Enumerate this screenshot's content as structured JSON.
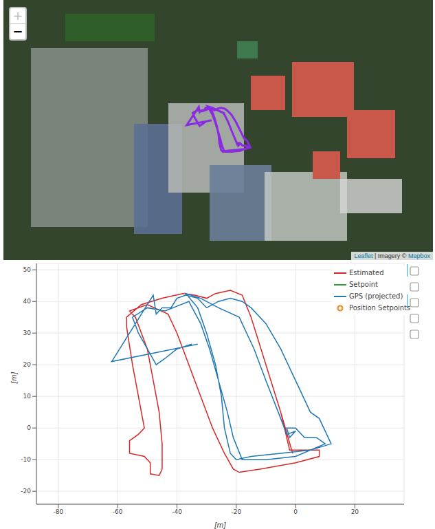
{
  "map": {
    "zoom_in": "+",
    "zoom_out": "−",
    "attribution": [
      "Leaflet",
      "|",
      "Imagery ©",
      "Mapbox"
    ],
    "track_color": "#8a2be2"
  },
  "chart_data": {
    "type": "line",
    "x_label": "[m]",
    "y_label": "[m]",
    "xlim": [
      -87.4,
      36.6
    ],
    "ylim": [
      -24.1,
      52
    ],
    "xticks": [
      -80,
      -60,
      -40,
      -20,
      0,
      20
    ],
    "yticks": [
      -20,
      -10,
      0,
      10,
      20,
      30,
      40,
      50
    ],
    "grid": true,
    "legend": "top_right",
    "series": [
      {
        "name": "Estimated",
        "color": "#d62728",
        "line_style": "solid",
        "x": [
          -1,
          -5,
          -10,
          -15,
          -18,
          -22,
          -27,
          -30,
          -34,
          -38,
          -45,
          -52,
          -57,
          -57,
          -55,
          -52,
          -51,
          -53,
          -56,
          -56,
          -51,
          -49,
          -49,
          -46,
          -45,
          -45,
          -46,
          -48,
          -50,
          -54,
          -56,
          -50,
          -43,
          -40,
          -36,
          -32,
          -28,
          -24,
          -21,
          -19,
          -12,
          0,
          8,
          8,
          -2,
          -5,
          -10,
          -15,
          -18,
          -22
        ],
        "y": [
          -8,
          5,
          20,
          35,
          42,
          43.5,
          42.5,
          41,
          42,
          42.5,
          41,
          39,
          35,
          32,
          20,
          5,
          0,
          -2,
          -4,
          -8,
          -9,
          -11,
          -14.5,
          -15,
          -13,
          -5,
          5,
          15,
          25,
          35,
          37,
          39,
          36,
          30,
          20,
          10,
          0,
          -8,
          -13,
          -14,
          -13,
          -11,
          -9,
          -7,
          -7,
          5,
          20,
          35,
          42,
          43.5
        ]
      },
      {
        "name": "Setpoint",
        "color": "#2ca02c",
        "line_style": "solid",
        "x": [],
        "y": []
      },
      {
        "name": "GPS (projected)",
        "color": "#1f77b4",
        "line_style": "solid",
        "x": [
          -33,
          -62,
          -48,
          -47,
          -45,
          -42,
          -40,
          -37,
          -33,
          -30,
          -26,
          -22,
          -18,
          -15,
          -10,
          -5,
          0,
          5,
          8,
          12,
          5,
          -5,
          -15,
          -20,
          -22,
          -24,
          -25,
          -27,
          -30,
          -33,
          -37,
          -32,
          -26,
          -19,
          -14,
          -10,
          -5,
          -3,
          0,
          -2,
          -3,
          0,
          3,
          7,
          10,
          0,
          -10,
          -18,
          -21,
          -23,
          -26,
          -29,
          -32,
          -36,
          -44,
          -50,
          -55,
          -53,
          -50,
          -47,
          -44,
          -40,
          -35
        ],
        "y": [
          26.5,
          21,
          42,
          36,
          38,
          38,
          41,
          42,
          41,
          38,
          40,
          41,
          40,
          38,
          33,
          25,
          15,
          5,
          3,
          -5,
          -7,
          -8,
          -9,
          -10,
          -8,
          0,
          10,
          20,
          30,
          38,
          42.5,
          41,
          38,
          35,
          25,
          15,
          3,
          -2,
          -1,
          -3,
          0,
          0,
          -3,
          -3,
          -5,
          -9,
          -10,
          -10,
          -3,
          5,
          15,
          25,
          33,
          40,
          37,
          38,
          35,
          30,
          25,
          20,
          22,
          25,
          26.5
        ]
      },
      {
        "name": "Position Setpoints",
        "color": "#ff7f0e",
        "marker": "circle",
        "x": [],
        "y": []
      }
    ]
  }
}
